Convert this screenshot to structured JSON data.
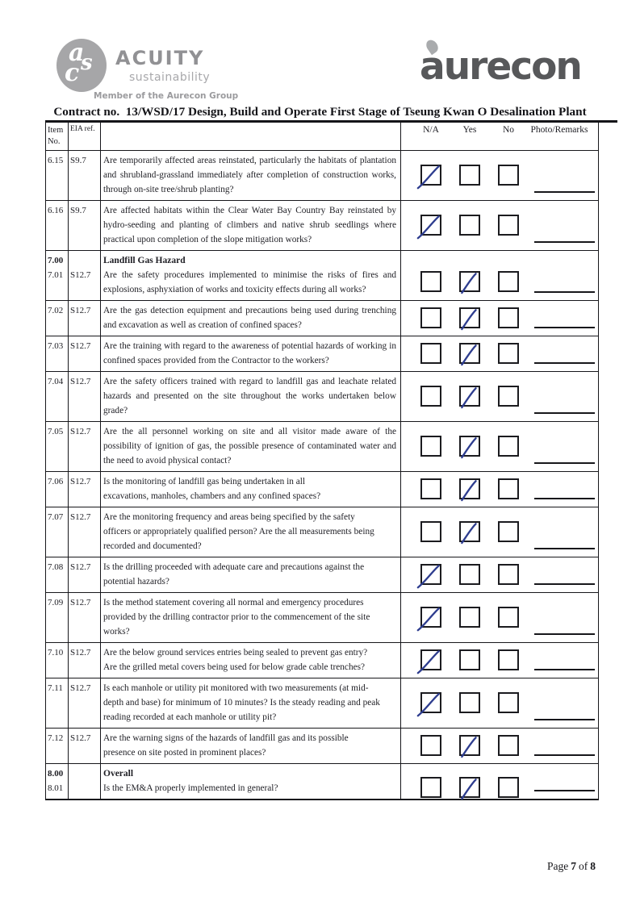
{
  "logos": {
    "acuity": {
      "monogram_letters": [
        "a",
        "s",
        "c"
      ],
      "name": "ACUITY",
      "tagline": "sustainability",
      "member_line": "Member of the Aurecon Group"
    },
    "aurecon": {
      "wordmark": "aurecon"
    }
  },
  "title": "Contract no.  13/WSD/17 Design, Build and Operate First Stage of Tseung Kwan O Desalination Plant",
  "table": {
    "col_headers": {
      "item_line1": "Item",
      "item_line2": "No.",
      "eia": "EIA ref.",
      "na": "N/A",
      "yes": "Yes",
      "no": "No",
      "photo": "Photo/Remarks"
    },
    "rows": [
      {
        "item": "6.15",
        "eia": "S9.7",
        "question": "Are temporarily affected areas reinstated, particularly the habitats of plantation and shrubland-grassland immediately after completion of construction works, through on-site tree/shrub planting?",
        "checked": "na",
        "text_width": "full"
      },
      {
        "item": "6.16",
        "eia": "S9.7",
        "question": "Are affected habitats within the Clear Water Bay Country Bay reinstated by hydro-seeding and planting of climbers and native shrub seedlings where practical upon completion of the slope mitigation works?",
        "checked": "na",
        "text_width": "full"
      },
      {
        "section_item": "7.00",
        "section_title": "Landfill Gas Hazard",
        "item": "7.01",
        "eia": "S12.7",
        "question": "Are the safety procedures implemented to minimise the risks of fires and explosions, asphyxiation of works and toxicity effects during all works?",
        "checked": "yes",
        "text_width": "full"
      },
      {
        "item": "7.02",
        "eia": "S12.7",
        "question": "Are the gas detection equipment and precautions being used during trenching and excavation as well as creation of confined spaces?",
        "checked": "yes",
        "text_width": "full"
      },
      {
        "item": "7.03",
        "eia": "S12.7",
        "question": "Are the training with regard to the awareness of potential hazards of working in confined spaces provided from the Contractor to the workers?",
        "checked": "yes",
        "text_width": "full"
      },
      {
        "item": "7.04",
        "eia": "S12.7",
        "question": "Are the safety officers trained with regard to landfill gas and leachate related hazards and presented on the site throughout the works undertaken below grade?",
        "checked": "yes",
        "text_width": "full"
      },
      {
        "item": "7.05",
        "eia": "S12.7",
        "question": "Are the all personnel working on site and all visitor made aware of the possibility of ignition of gas, the possible presence of contaminated water and the need to avoid physical contact?",
        "checked": "yes",
        "text_width": "full"
      },
      {
        "item": "7.06",
        "eia": "S12.7",
        "question": "Is the monitoring of landfill gas being undertaken in all excavations, manholes, chambers and any confined spaces?",
        "checked": "yes",
        "text_width": "narrow"
      },
      {
        "item": "7.07",
        "eia": "S12.7",
        "question": "Are the monitoring frequency and areas being specified by the safety officers or appropriately qualified person? Are the all measurements being recorded and documented?",
        "checked": "yes",
        "text_width": "mid"
      },
      {
        "item": "7.08",
        "eia": "S12.7",
        "question": "Is the drilling proceeded with adequate care and precautions against the potential hazards?",
        "checked": "na",
        "text_width": "mid"
      },
      {
        "item": "7.09",
        "eia": "S12.7",
        "question": "Is the method statement covering all normal and emergency procedures provided by the drilling contractor prior to the commencement of the site works?",
        "checked": "na",
        "text_width": "mid"
      },
      {
        "item": "7.10",
        "eia": "S12.7",
        "question": "Are the below ground services entries being sealed to prevent gas entry? Are the grilled metal covers being used for below grade cable trenches?",
        "checked": "na",
        "text_width": "mid"
      },
      {
        "item": "7.11",
        "eia": "S12.7",
        "question": "Is each manhole or utility pit monitored with two measurements (at mid-depth and base) for minimum of 10 minutes? Is the steady reading and peak reading recorded at each manhole or utility pit?",
        "checked": "na",
        "text_width": "mid"
      },
      {
        "item": "7.12",
        "eia": "S12.7",
        "question": "Are the warning signs of the hazards of landfill gas and its possible presence on site posted in prominent places?",
        "checked": "yes",
        "text_width": "mid"
      },
      {
        "section_item": "8.00",
        "section_title": "Overall",
        "item": "8.01",
        "eia": "",
        "question": "Is the EM&A properly implemented in general?",
        "checked": "yes",
        "text_width": "full"
      }
    ]
  },
  "footer": {
    "label": "Page",
    "page": "7",
    "of_word": "of",
    "total": "8"
  },
  "colors": {
    "tick_blue": "#2e3d8f",
    "border_ink": "#17171b",
    "logo_gray": "#919194",
    "logo_gray_light": "#a8a8ab",
    "aurecon_gray": "#57585a"
  }
}
